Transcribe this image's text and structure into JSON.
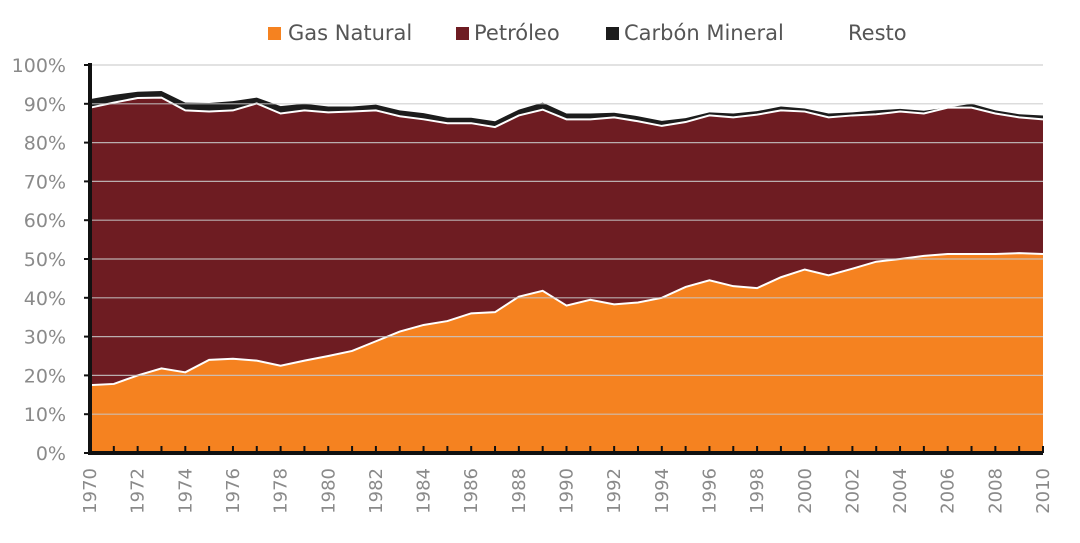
{
  "chart_data": {
    "type": "area",
    "stacked": true,
    "percent": true,
    "x": [
      1970,
      1971,
      1972,
      1973,
      1974,
      1975,
      1976,
      1977,
      1978,
      1979,
      1980,
      1981,
      1982,
      1983,
      1984,
      1985,
      1986,
      1987,
      1988,
      1989,
      1990,
      1991,
      1992,
      1993,
      1994,
      1995,
      1996,
      1997,
      1998,
      1999,
      2000,
      2001,
      2002,
      2003,
      2004,
      2005,
      2006,
      2007,
      2008,
      2009,
      2010
    ],
    "x_tick_labels": [
      "1970",
      "1972",
      "1974",
      "1976",
      "1978",
      "1980",
      "1982",
      "1984",
      "1986",
      "1988",
      "1990",
      "1992",
      "1994",
      "1996",
      "1998",
      "2000",
      "2002",
      "2004",
      "2006",
      "2008",
      "2010"
    ],
    "y_tick_labels": [
      "0%",
      "10%",
      "20%",
      "30%",
      "40%",
      "50%",
      "60%",
      "70%",
      "80%",
      "90%",
      "100%"
    ],
    "ylim": [
      0,
      100
    ],
    "grid": "horizontal",
    "legend_position": "top",
    "series": [
      {
        "name": "Gas Natural",
        "color": "#F58220",
        "values": [
          17.5,
          17.8,
          20,
          21.8,
          20.8,
          24,
          24.3,
          23.8,
          22.5,
          23.8,
          25,
          26.3,
          28.8,
          31.3,
          33,
          34,
          36,
          36.3,
          40.3,
          41.8,
          38,
          39.5,
          38.3,
          38.8,
          40,
          42.8,
          44.5,
          43,
          42.5,
          45.3,
          47.3,
          45.8,
          47.5,
          49.3,
          50,
          50.8,
          51.3,
          51.3,
          51.3,
          51.5,
          51.3
        ],
        "legend_marker": true
      },
      {
        "name": "Petróleo",
        "color": "#6E1C22",
        "values": [
          71.5,
          72.5,
          71.5,
          69.8,
          67.5,
          64,
          64,
          66.3,
          65,
          64.5,
          62.8,
          61.7,
          59.5,
          55.5,
          53,
          51,
          49,
          47.7,
          46.7,
          46.7,
          48,
          46.5,
          48.2,
          46.7,
          44.3,
          42.5,
          42.5,
          43.5,
          44.7,
          43,
          40.7,
          40.7,
          39.5,
          38,
          38,
          36.7,
          37.7,
          37.7,
          36.2,
          35,
          34.7
        ],
        "legend_marker": true
      },
      {
        "name": "Carbón Mineral",
        "color": "#1C1C1C",
        "values": [
          2.2,
          2,
          1.6,
          1.7,
          2,
          2.2,
          2.4,
          1.5,
          1.9,
          1.7,
          1.5,
          1.3,
          1.5,
          1.5,
          1.6,
          1.4,
          1.4,
          1.5,
          1.5,
          1.8,
          1.5,
          1.5,
          1.2,
          1.3,
          1.3,
          1,
          0.8,
          1,
          0.9,
          1,
          0.8,
          1,
          0.8,
          1,
          0.7,
          0.7,
          0,
          1,
          0.8,
          0.8,
          1
        ],
        "legend_marker": true
      },
      {
        "name": "Resto",
        "color": "#FFFFFF",
        "values": [
          8.8,
          7.7,
          6.9,
          6.7,
          9.7,
          9.8,
          9.3,
          8.4,
          10.6,
          10,
          10.7,
          10.7,
          10.2,
          11.7,
          12.4,
          13.6,
          13.6,
          14.5,
          11.5,
          9.7,
          12.5,
          12.5,
          12.3,
          13.2,
          14.4,
          13.7,
          12.2,
          12.5,
          11.9,
          10.7,
          11.2,
          12.5,
          12.2,
          11.7,
          11.3,
          11.8,
          11,
          10,
          11.7,
          12.7,
          13
        ],
        "legend_marker": false
      }
    ]
  }
}
